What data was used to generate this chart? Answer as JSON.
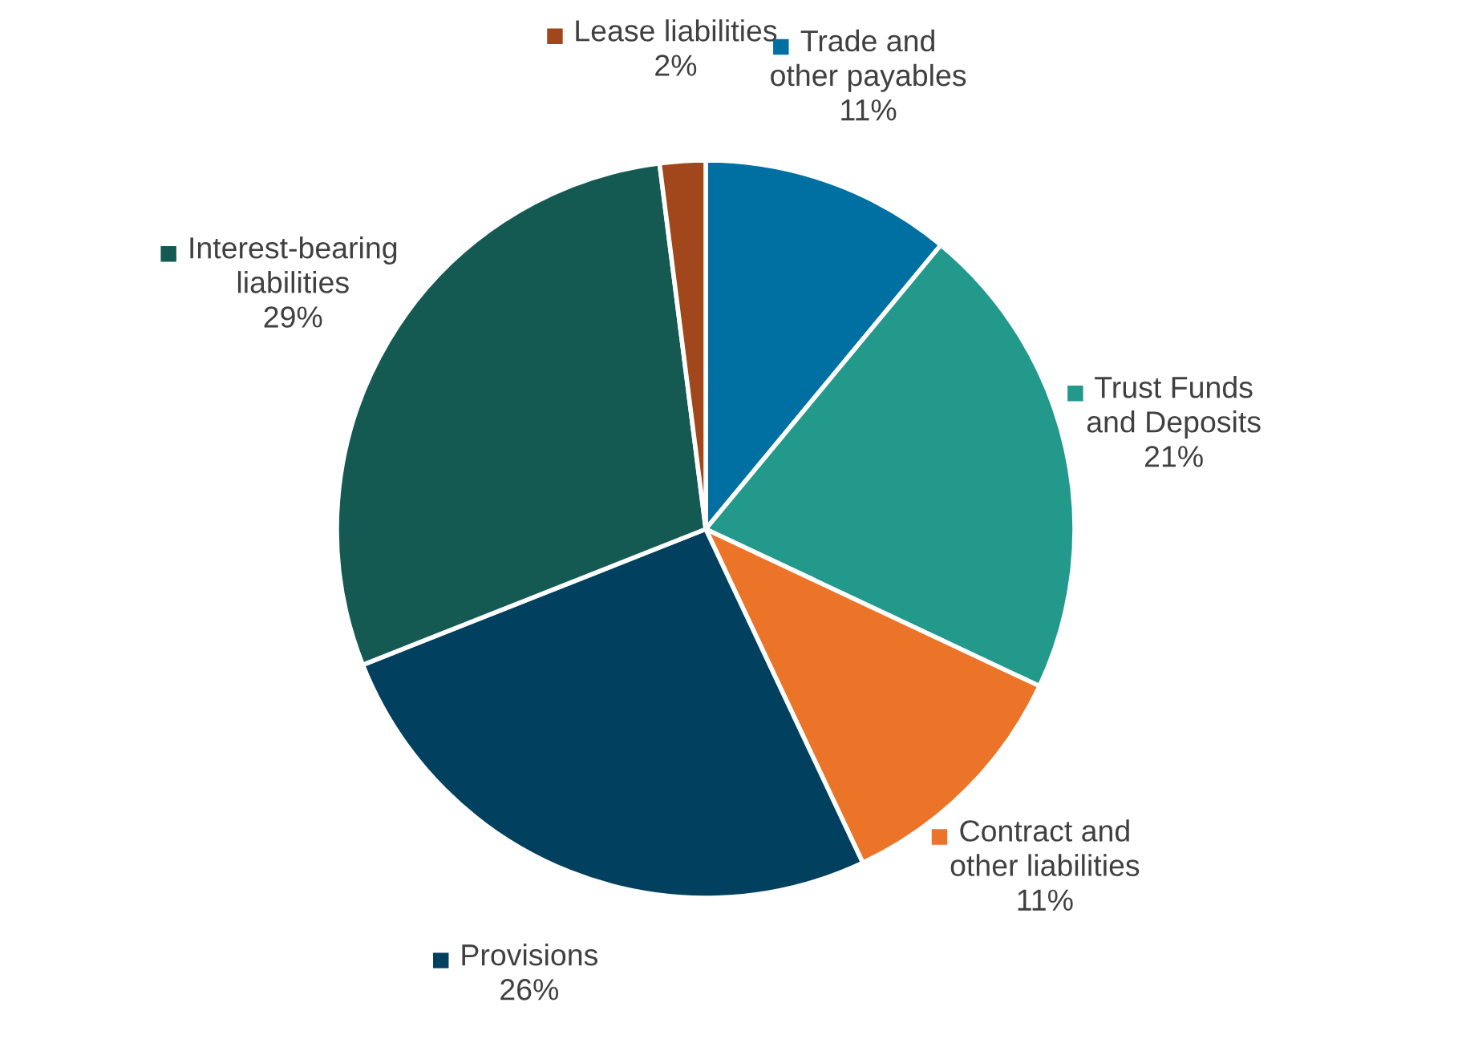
{
  "chart_data": {
    "type": "pie",
    "categories": [
      "Trade and other payables",
      "Trust Funds and Deposits",
      "Contract and other liabilities",
      "Provisions",
      "Interest-bearing liabilities",
      "Lease liabilities"
    ],
    "values": [
      11,
      21,
      11,
      26,
      29,
      2
    ],
    "colors": [
      "#0070a3",
      "#23998b",
      "#ec7428",
      "#024060",
      "#155a52",
      "#a1471b"
    ],
    "value_labels": [
      "11%",
      "21%",
      "11%",
      "26%",
      "29%",
      "2%"
    ],
    "legend": "top right"
  }
}
